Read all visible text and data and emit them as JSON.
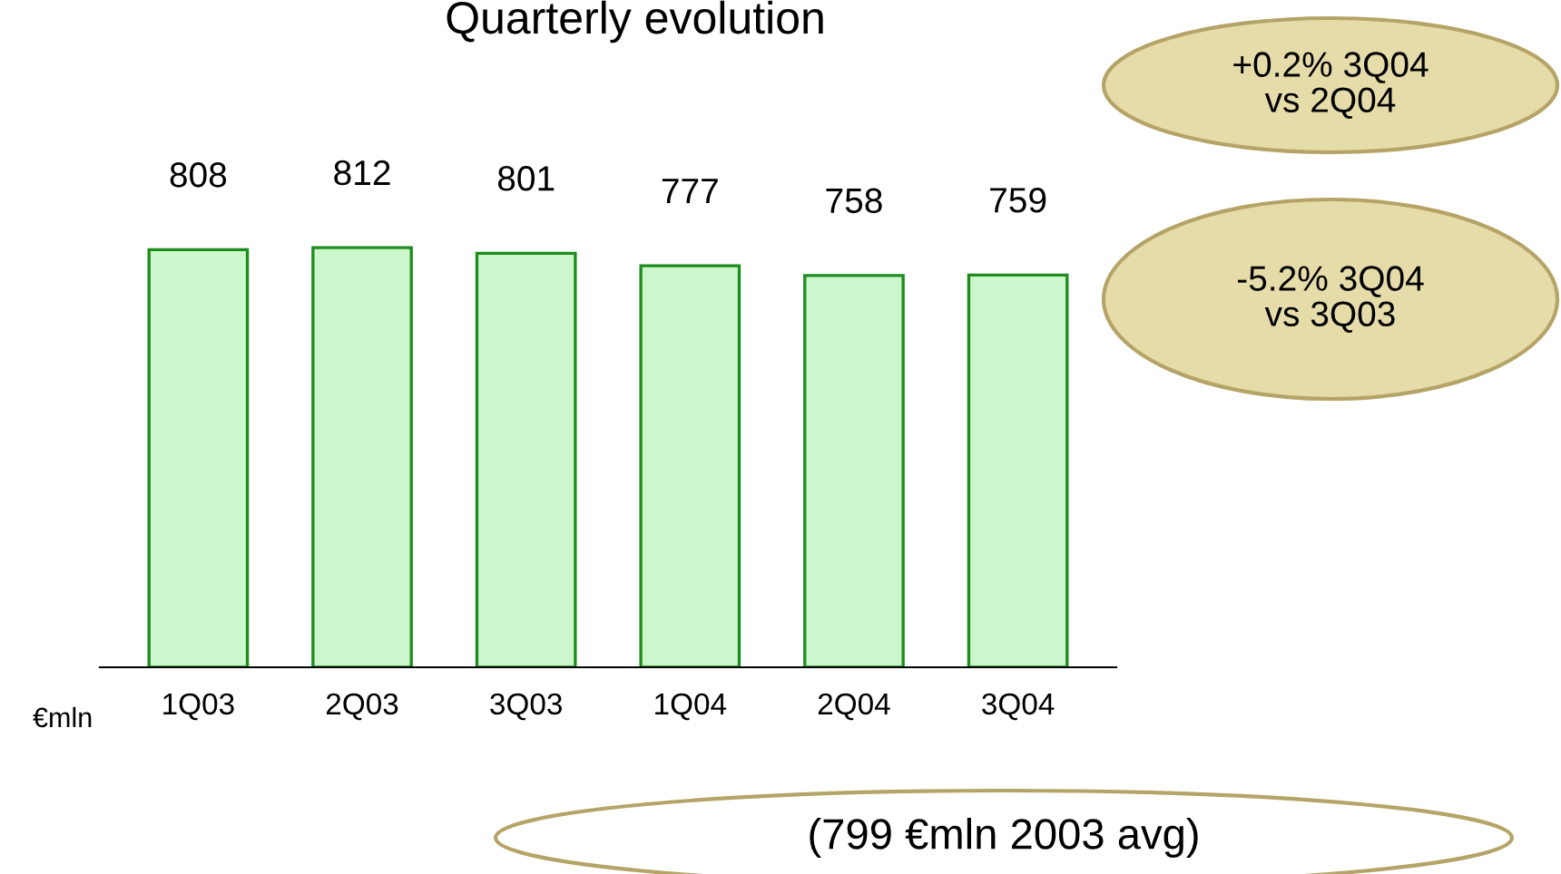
{
  "chart_data": {
    "type": "bar",
    "title": "Quarterly evolution",
    "ylabel": "€mln",
    "categories": [
      "1Q03",
      "2Q03",
      "3Q03",
      "1Q04",
      "2Q04",
      "3Q04"
    ],
    "values": [
      808,
      812,
      801,
      777,
      758,
      759
    ],
    "color": "#ccf7cc",
    "relative": false,
    "data_labels": true,
    "grid": false,
    "legend": false,
    "annotations": [
      "+0.2% 3Q04\nvs 2Q04",
      "-5.2% 3Q04\nvs 3Q03",
      "(799 €mln 2003 avg)"
    ]
  }
}
